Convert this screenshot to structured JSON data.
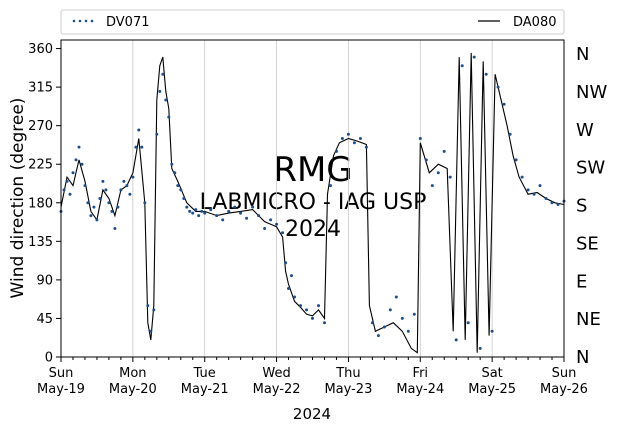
{
  "chart_data": {
    "type": "scatter",
    "title": "",
    "xlabel": "2024",
    "ylabel": "Wind direction (degree)",
    "xlim": [
      "2024-05-19",
      "2024-05-26"
    ],
    "ylim": [
      0,
      370
    ],
    "yticks": [
      0,
      45,
      90,
      135,
      180,
      225,
      270,
      315,
      360
    ],
    "xticks": [
      {
        "date": "2024-05-19",
        "day": "Sun",
        "label": "May-19"
      },
      {
        "date": "2024-05-20",
        "day": "Mon",
        "label": "May-20"
      },
      {
        "date": "2024-05-21",
        "day": "Tue",
        "label": "May-21"
      },
      {
        "date": "2024-05-22",
        "day": "Wed",
        "label": "May-22"
      },
      {
        "date": "2024-05-23",
        "day": "Thu",
        "label": "May-23"
      },
      {
        "date": "2024-05-24",
        "day": "Fri",
        "label": "May-24"
      },
      {
        "date": "2024-05-25",
        "day": "Sat",
        "label": "May-25"
      },
      {
        "date": "2024-05-26",
        "day": "Sun",
        "label": "May-26"
      }
    ],
    "compass_labels": [
      {
        "deg": 0,
        "label": "N"
      },
      {
        "deg": 45,
        "label": "NE"
      },
      {
        "deg": 90,
        "label": "E"
      },
      {
        "deg": 135,
        "label": "SE"
      },
      {
        "deg": 180,
        "label": "S"
      },
      {
        "deg": 225,
        "label": "SW"
      },
      {
        "deg": 270,
        "label": "W"
      },
      {
        "deg": 315,
        "label": "NW"
      },
      {
        "deg": 360,
        "label": "N"
      }
    ],
    "grid": "vertical at day ticks",
    "legend": "top, above plot",
    "watermark": [
      "RMG",
      "LABMICRO - IAG USP",
      "2024"
    ],
    "series": [
      {
        "name": "DV071",
        "style": "dotted-markers",
        "color": "#1f4e8c",
        "points": [
          [
            "2024-05-19 00:00",
            170
          ],
          [
            "2024-05-19 01:00",
            195
          ],
          [
            "2024-05-19 02:00",
            205
          ],
          [
            "2024-05-19 03:00",
            190
          ],
          [
            "2024-05-19 04:00",
            215
          ],
          [
            "2024-05-19 05:00",
            230
          ],
          [
            "2024-05-19 06:00",
            245
          ],
          [
            "2024-05-19 07:00",
            225
          ],
          [
            "2024-05-19 08:00",
            200
          ],
          [
            "2024-05-19 09:00",
            180
          ],
          [
            "2024-05-19 10:00",
            165
          ],
          [
            "2024-05-19 11:00",
            175
          ],
          [
            "2024-05-19 12:00",
            160
          ],
          [
            "2024-05-19 13:00",
            185
          ],
          [
            "2024-05-19 14:00",
            205
          ],
          [
            "2024-05-19 15:00",
            195
          ],
          [
            "2024-05-19 16:00",
            180
          ],
          [
            "2024-05-19 17:00",
            170
          ],
          [
            "2024-05-19 18:00",
            150
          ],
          [
            "2024-05-19 19:00",
            175
          ],
          [
            "2024-05-19 20:00",
            195
          ],
          [
            "2024-05-19 21:00",
            205
          ],
          [
            "2024-05-19 22:00",
            200
          ],
          [
            "2024-05-19 23:00",
            190
          ],
          [
            "2024-05-20 00:00",
            210
          ],
          [
            "2024-05-20 01:00",
            245
          ],
          [
            "2024-05-20 02:00",
            265
          ],
          [
            "2024-05-20 03:00",
            245
          ],
          [
            "2024-05-20 04:00",
            180
          ],
          [
            "2024-05-20 05:00",
            60
          ],
          [
            "2024-05-20 06:00",
            30
          ],
          [
            "2024-05-20 07:00",
            55
          ],
          [
            "2024-05-20 08:00",
            260
          ],
          [
            "2024-05-20 09:00",
            310
          ],
          [
            "2024-05-20 10:00",
            330
          ],
          [
            "2024-05-20 11:00",
            300
          ],
          [
            "2024-05-20 12:00",
            280
          ],
          [
            "2024-05-20 13:00",
            225
          ],
          [
            "2024-05-20 14:00",
            215
          ],
          [
            "2024-05-20 15:00",
            200
          ],
          [
            "2024-05-20 16:00",
            195
          ],
          [
            "2024-05-20 17:00",
            185
          ],
          [
            "2024-05-20 18:00",
            175
          ],
          [
            "2024-05-20 19:00",
            170
          ],
          [
            "2024-05-20 20:00",
            168
          ],
          [
            "2024-05-20 21:00",
            172
          ],
          [
            "2024-05-20 22:00",
            165
          ],
          [
            "2024-05-20 23:00",
            170
          ],
          [
            "2024-05-21 00:00",
            168
          ],
          [
            "2024-05-21 02:00",
            172
          ],
          [
            "2024-05-21 04:00",
            165
          ],
          [
            "2024-05-21 06:00",
            160
          ],
          [
            "2024-05-21 08:00",
            170
          ],
          [
            "2024-05-21 10:00",
            175
          ],
          [
            "2024-05-21 12:00",
            168
          ],
          [
            "2024-05-21 14:00",
            162
          ],
          [
            "2024-05-21 16:00",
            175
          ],
          [
            "2024-05-21 18:00",
            165
          ],
          [
            "2024-05-21 20:00",
            150
          ],
          [
            "2024-05-21 22:00",
            160
          ],
          [
            "2024-05-22 00:00",
            155
          ],
          [
            "2024-05-22 02:00",
            145
          ],
          [
            "2024-05-22 03:00",
            110
          ],
          [
            "2024-05-22 04:00",
            80
          ],
          [
            "2024-05-22 05:00",
            95
          ],
          [
            "2024-05-22 06:00",
            70
          ],
          [
            "2024-05-22 08:00",
            60
          ],
          [
            "2024-05-22 10:00",
            55
          ],
          [
            "2024-05-22 12:00",
            45
          ],
          [
            "2024-05-22 14:00",
            60
          ],
          [
            "2024-05-22 16:00",
            40
          ],
          [
            "2024-05-22 18:00",
            200
          ],
          [
            "2024-05-22 20:00",
            240
          ],
          [
            "2024-05-22 22:00",
            255
          ],
          [
            "2024-05-23 00:00",
            260
          ],
          [
            "2024-05-23 02:00",
            250
          ],
          [
            "2024-05-23 04:00",
            255
          ],
          [
            "2024-05-23 06:00",
            245
          ],
          [
            "2024-05-23 08:00",
            40
          ],
          [
            "2024-05-23 10:00",
            25
          ],
          [
            "2024-05-23 12:00",
            35
          ],
          [
            "2024-05-23 14:00",
            55
          ],
          [
            "2024-05-23 16:00",
            70
          ],
          [
            "2024-05-23 18:00",
            45
          ],
          [
            "2024-05-23 20:00",
            30
          ],
          [
            "2024-05-23 22:00",
            50
          ],
          [
            "2024-05-24 00:00",
            255
          ],
          [
            "2024-05-24 02:00",
            230
          ],
          [
            "2024-05-24 04:00",
            200
          ],
          [
            "2024-05-24 06:00",
            215
          ],
          [
            "2024-05-24 08:00",
            240
          ],
          [
            "2024-05-24 10:00",
            210
          ],
          [
            "2024-05-24 12:00",
            20
          ],
          [
            "2024-05-24 14:00",
            340
          ],
          [
            "2024-05-24 16:00",
            40
          ],
          [
            "2024-05-24 18:00",
            350
          ],
          [
            "2024-05-24 20:00",
            10
          ],
          [
            "2024-05-24 22:00",
            330
          ],
          [
            "2024-05-25 00:00",
            30
          ],
          [
            "2024-05-25 02:00",
            315
          ],
          [
            "2024-05-25 04:00",
            295
          ],
          [
            "2024-05-25 06:00",
            260
          ],
          [
            "2024-05-25 08:00",
            230
          ],
          [
            "2024-05-25 10:00",
            210
          ],
          [
            "2024-05-25 12:00",
            195
          ],
          [
            "2024-05-25 14:00",
            190
          ],
          [
            "2024-05-25 16:00",
            200
          ],
          [
            "2024-05-25 18:00",
            185
          ],
          [
            "2024-05-25 20:00",
            180
          ],
          [
            "2024-05-25 22:00",
            178
          ],
          [
            "2024-05-26 00:00",
            182
          ]
        ]
      },
      {
        "name": "DA080",
        "style": "line",
        "color": "#000000",
        "points": [
          [
            "2024-05-19 00:00",
            175
          ],
          [
            "2024-05-19 02:00",
            210
          ],
          [
            "2024-05-19 04:00",
            200
          ],
          [
            "2024-05-19 06:00",
            230
          ],
          [
            "2024-05-19 08:00",
            205
          ],
          [
            "2024-05-19 10:00",
            170
          ],
          [
            "2024-05-19 12:00",
            160
          ],
          [
            "2024-05-19 14:00",
            195
          ],
          [
            "2024-05-19 16:00",
            185
          ],
          [
            "2024-05-19 18:00",
            165
          ],
          [
            "2024-05-19 20:00",
            195
          ],
          [
            "2024-05-19 22:00",
            200
          ],
          [
            "2024-05-20 00:00",
            215
          ],
          [
            "2024-05-20 02:00",
            255
          ],
          [
            "2024-05-20 04:00",
            180
          ],
          [
            "2024-05-20 05:00",
            40
          ],
          [
            "2024-05-20 06:00",
            20
          ],
          [
            "2024-05-20 07:00",
            60
          ],
          [
            "2024-05-20 08:00",
            300
          ],
          [
            "2024-05-20 09:00",
            340
          ],
          [
            "2024-05-20 10:00",
            350
          ],
          [
            "2024-05-20 11:00",
            310
          ],
          [
            "2024-05-20 12:00",
            290
          ],
          [
            "2024-05-20 13:00",
            220
          ],
          [
            "2024-05-20 15:00",
            205
          ],
          [
            "2024-05-20 18:00",
            180
          ],
          [
            "2024-05-20 21:00",
            170
          ],
          [
            "2024-05-21 00:00",
            170
          ],
          [
            "2024-05-21 04:00",
            165
          ],
          [
            "2024-05-21 08:00",
            168
          ],
          [
            "2024-05-21 12:00",
            170
          ],
          [
            "2024-05-21 16:00",
            172
          ],
          [
            "2024-05-21 20:00",
            158
          ],
          [
            "2024-05-22 00:00",
            152
          ],
          [
            "2024-05-22 02:00",
            140
          ],
          [
            "2024-05-22 03:00",
            100
          ],
          [
            "2024-05-22 04:00",
            85
          ],
          [
            "2024-05-22 06:00",
            65
          ],
          [
            "2024-05-22 08:00",
            58
          ],
          [
            "2024-05-22 10:00",
            50
          ],
          [
            "2024-05-22 12:00",
            48
          ],
          [
            "2024-05-22 14:00",
            55
          ],
          [
            "2024-05-22 16:00",
            45
          ],
          [
            "2024-05-22 17:00",
            190
          ],
          [
            "2024-05-22 19:00",
            235
          ],
          [
            "2024-05-22 21:00",
            250
          ],
          [
            "2024-05-23 00:00",
            255
          ],
          [
            "2024-05-23 03:00",
            252
          ],
          [
            "2024-05-23 06:00",
            248
          ],
          [
            "2024-05-23 07:00",
            60
          ],
          [
            "2024-05-23 09:00",
            30
          ],
          [
            "2024-05-23 12:00",
            35
          ],
          [
            "2024-05-23 15:00",
            40
          ],
          [
            "2024-05-23 18:00",
            30
          ],
          [
            "2024-05-23 21:00",
            10
          ],
          [
            "2024-05-23 23:00",
            5
          ],
          [
            "2024-05-24 00:00",
            250
          ],
          [
            "2024-05-24 03:00",
            215
          ],
          [
            "2024-05-24 06:00",
            225
          ],
          [
            "2024-05-24 09:00",
            220
          ],
          [
            "2024-05-24 11:00",
            30
          ],
          [
            "2024-05-24 13:00",
            350
          ],
          [
            "2024-05-24 15:00",
            20
          ],
          [
            "2024-05-24 17:00",
            355
          ],
          [
            "2024-05-24 19:00",
            5
          ],
          [
            "2024-05-24 21:00",
            345
          ],
          [
            "2024-05-24 23:00",
            25
          ],
          [
            "2024-05-25 01:00",
            330
          ],
          [
            "2024-05-25 03:00",
            300
          ],
          [
            "2024-05-25 05:00",
            270
          ],
          [
            "2024-05-25 07:00",
            235
          ],
          [
            "2024-05-25 09:00",
            210
          ],
          [
            "2024-05-25 12:00",
            190
          ],
          [
            "2024-05-25 15:00",
            192
          ],
          [
            "2024-05-25 18:00",
            185
          ],
          [
            "2024-05-25 21:00",
            180
          ],
          [
            "2024-05-26 00:00",
            178
          ]
        ]
      }
    ]
  }
}
